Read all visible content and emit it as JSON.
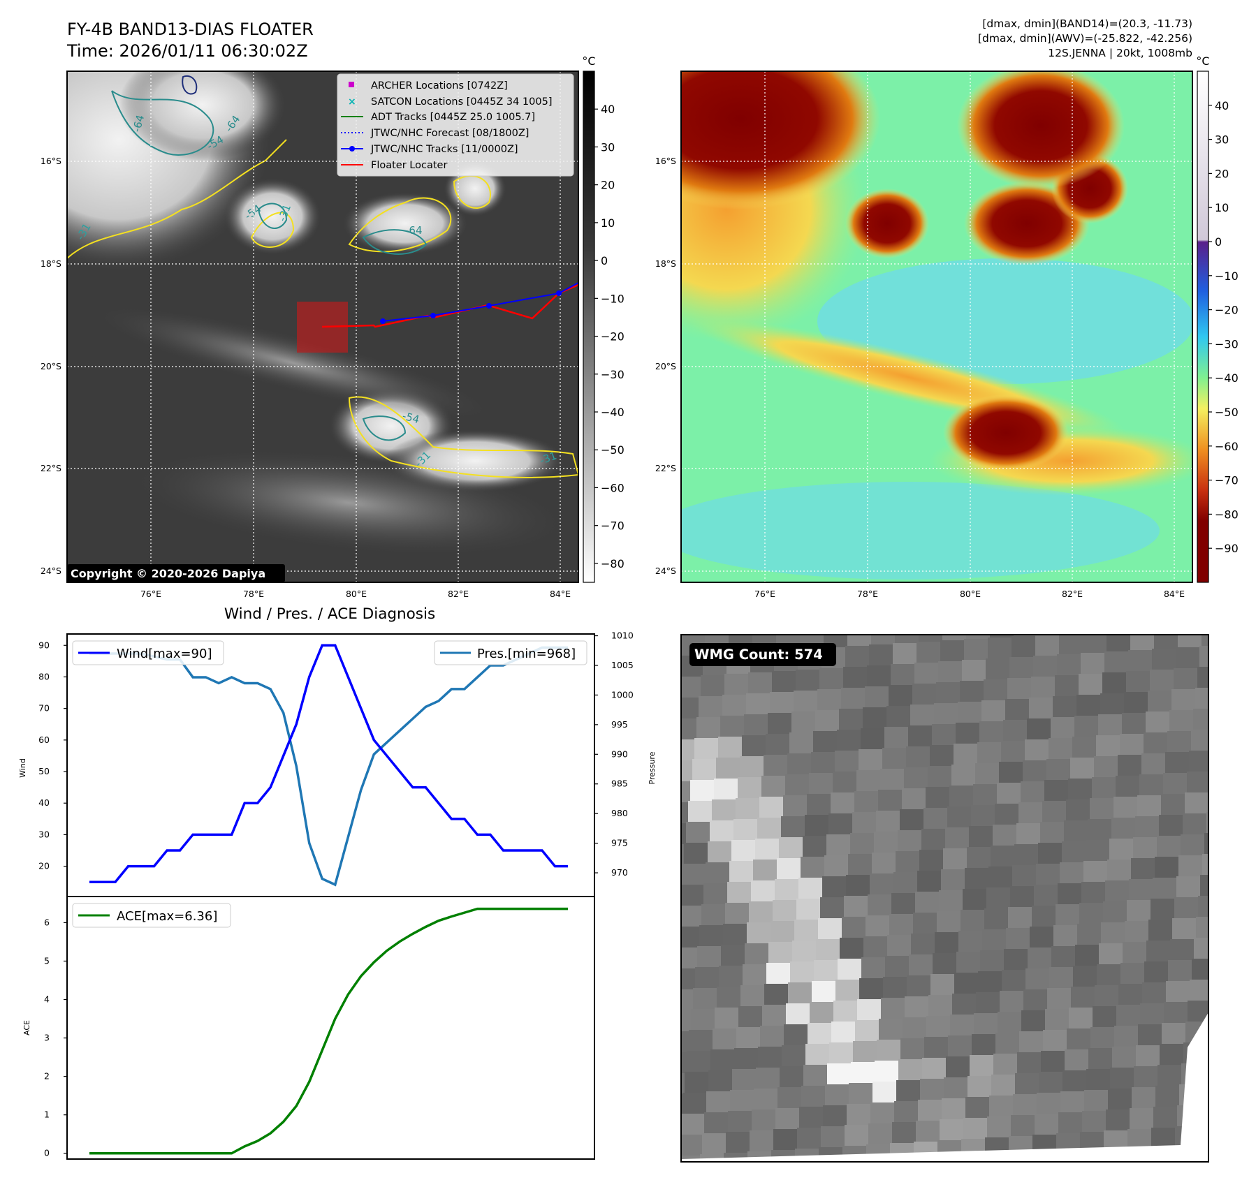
{
  "header": {
    "title_line1": "FY-4B BAND13-DIAS FLOATER",
    "title_line2": "Time: 2026/01/11 06:30:02Z",
    "info_line1": "[dmax, dmin](BAND14)=(20.3, -11.73)",
    "info_line2": "[dmax, dmin](AWV)=(-25.822, -42.256)",
    "info_line3": "12S.JENNA | 20kt, 1008mb"
  },
  "maps": {
    "lon_ticks": [
      "76°E",
      "78°E",
      "80°E",
      "82°E",
      "84°E"
    ],
    "lat_ticks": [
      "16°S",
      "18°S",
      "20°S",
      "22°S",
      "24°S"
    ],
    "copyright": "Copyright © 2020-2026 Dapiya",
    "legend": [
      {
        "label": "ARCHER Locations [0742Z]",
        "color": "#cc00cc",
        "style": "square"
      },
      {
        "label": "SATCON Locations [0445Z 34 1005]",
        "color": "#00b3b3",
        "style": "x"
      },
      {
        "label": "ADT Tracks [0445Z 25.0 1005.7]",
        "color": "#008000",
        "style": "line"
      },
      {
        "label": "JTWC/NHC Forecast [08/1800Z]",
        "color": "#0000ff",
        "style": "dotted"
      },
      {
        "label": "JTWC/NHC Tracks [11/0000Z]",
        "color": "#0000ff",
        "style": "line-dot"
      },
      {
        "label": "Floater Locater",
        "color": "#ff0000",
        "style": "line"
      }
    ],
    "contour_labels": [
      "-64",
      "-54",
      "-31",
      "-64",
      "-54",
      "-64",
      "-31",
      "-54",
      "-31",
      "-31"
    ],
    "gray_colorbar": {
      "unit": "°C",
      "ticks": [
        "40",
        "30",
        "20",
        "10",
        "0",
        "−10",
        "−20",
        "−30",
        "−40",
        "−50",
        "−60",
        "−70",
        "−80"
      ],
      "range": [
        -85,
        50
      ]
    },
    "color_colorbar": {
      "unit": "°C",
      "ticks": [
        "40",
        "30",
        "20",
        "10",
        "0",
        "−10",
        "−20",
        "−30",
        "−40",
        "−50",
        "−60",
        "−70",
        "−80",
        "−90"
      ],
      "range": [
        -100,
        50
      ]
    }
  },
  "chart_data": [
    {
      "type": "line",
      "title": "Wind / Pres. / ACE Diagnosis",
      "x": [
        0,
        1,
        2,
        3,
        4,
        5,
        6,
        7,
        8,
        9,
        10,
        11,
        12,
        13,
        14,
        15,
        16,
        17,
        18,
        19,
        20,
        21,
        22,
        23,
        24,
        25,
        26,
        27,
        28,
        29,
        30,
        31,
        32,
        33,
        34,
        35,
        36,
        37
      ],
      "series": [
        {
          "name": "Wind[max=90]",
          "axis": "left",
          "color": "#0000ff",
          "values": [
            15,
            15,
            15,
            20,
            20,
            20,
            25,
            25,
            30,
            30,
            30,
            30,
            40,
            40,
            45,
            55,
            65,
            80,
            90,
            90,
            80,
            70,
            60,
            55,
            50,
            45,
            45,
            40,
            35,
            35,
            30,
            30,
            25,
            25,
            25,
            25,
            20,
            20
          ]
        },
        {
          "name": "Pres.[min=968]",
          "axis": "right",
          "color": "#1f77b4",
          "values": [
            1007,
            1007,
            1007,
            1007,
            1007,
            1006.5,
            1006,
            1006,
            1003,
            1003,
            1002,
            1003,
            1002,
            1002,
            1001,
            997,
            988,
            975,
            969,
            968,
            976,
            984,
            990,
            992,
            994,
            996,
            998,
            999,
            1001,
            1001,
            1003,
            1005,
            1005,
            1006,
            1007,
            1008,
            1008,
            1008
          ]
        }
      ],
      "ylabel_left": "Wind",
      "ylabel_right": "Pressure",
      "y_left_ticks": [
        20,
        30,
        40,
        50,
        60,
        70,
        80,
        90
      ],
      "y_left_range": [
        10.4,
        93.6
      ],
      "y_right_ticks": [
        970,
        975,
        980,
        985,
        990,
        995,
        1000,
        1005,
        1010
      ],
      "y_right_range": [
        966,
        1010.3
      ]
    },
    {
      "type": "line",
      "x": [
        0,
        1,
        2,
        3,
        4,
        5,
        6,
        7,
        8,
        9,
        10,
        11,
        12,
        13,
        14,
        15,
        16,
        17,
        18,
        19,
        20,
        21,
        22,
        23,
        24,
        25,
        26,
        27,
        28,
        29,
        30,
        31,
        32,
        33,
        34,
        35,
        36,
        37
      ],
      "series": [
        {
          "name": "ACE[max=6.36]",
          "color": "#008000",
          "values": [
            0,
            0,
            0,
            0,
            0,
            0,
            0,
            0,
            0,
            0,
            0,
            0,
            0.18,
            0.32,
            0.52,
            0.82,
            1.23,
            1.86,
            2.68,
            3.5,
            4.13,
            4.61,
            4.97,
            5.27,
            5.51,
            5.71,
            5.89,
            6.05,
            6.16,
            6.26,
            6.36,
            6.36,
            6.36,
            6.36,
            6.36,
            6.36,
            6.36,
            6.36
          ]
        }
      ],
      "ylabel": "ACE",
      "y_ticks": [
        0,
        1,
        2,
        3,
        4,
        5,
        6
      ],
      "y_range": [
        -0.15,
        6.68
      ]
    }
  ],
  "wmg": {
    "count_label": "WMG Count: 574"
  }
}
